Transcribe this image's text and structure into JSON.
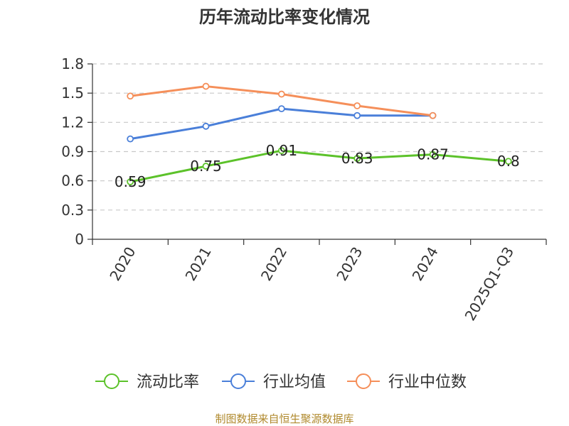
{
  "chart_data": {
    "type": "line",
    "title": "历年流动比率变化情况",
    "categories": [
      "2020",
      "2021",
      "2022",
      "2023",
      "2024",
      "2025Q1-Q3"
    ],
    "ylim": [
      0,
      1.8
    ],
    "yticks": [
      "0",
      "0.3",
      "0.6",
      "0.9",
      "1.2",
      "1.5",
      "1.8"
    ],
    "grid": true,
    "legend_position": "bottom",
    "series": [
      {
        "name": "流动比率",
        "color": "#5cc22a",
        "values": [
          0.59,
          0.75,
          0.91,
          0.83,
          0.87,
          0.8
        ],
        "labels": [
          "0.59",
          "0.75",
          "0.91",
          "0.83",
          "0.87",
          "0.8"
        ]
      },
      {
        "name": "行业均值",
        "color": "#4a7fd9",
        "values": [
          1.03,
          1.16,
          1.34,
          1.27,
          1.27,
          null
        ]
      },
      {
        "name": "行业中位数",
        "color": "#f58f5a",
        "values": [
          1.47,
          1.57,
          1.49,
          1.37,
          1.27,
          null
        ]
      }
    ]
  },
  "source_text": "制图数据来自恒生聚源数据库"
}
